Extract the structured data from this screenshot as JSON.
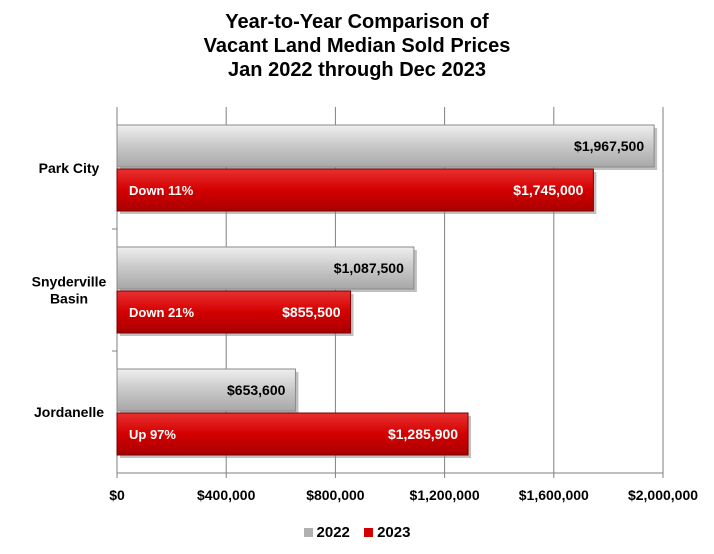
{
  "chart_data": {
    "type": "bar",
    "orientation": "horizontal",
    "title": [
      "Year-to-Year Comparison of",
      "Vacant Land Median Sold Prices",
      "Jan 2022 through Dec 2023"
    ],
    "categories": [
      {
        "lines": [
          "Park City"
        ]
      },
      {
        "lines": [
          "Snyderville",
          "Basin"
        ]
      },
      {
        "lines": [
          "Jordanelle"
        ]
      }
    ],
    "series": [
      {
        "name": "2022",
        "color": "#c8c8c8",
        "values": [
          1967500,
          1087500,
          653600
        ],
        "labels": [
          "$1,967,500",
          "$1,087,500",
          "$653,600"
        ]
      },
      {
        "name": "2023",
        "color": "#d40000",
        "values": [
          1745000,
          855500,
          1285900
        ],
        "labels": [
          "$1,745,000",
          "$855,500",
          "$1,285,900"
        ],
        "change_labels": [
          "Down 11%",
          "Down 21%",
          "Up 97%"
        ]
      }
    ],
    "xlim": [
      0,
      2000000
    ],
    "ticks": [
      0,
      400000,
      800000,
      1200000,
      1600000,
      2000000
    ],
    "tick_labels": [
      "$0",
      "$400,000",
      "$800,000",
      "$1,200,000",
      "$1,600,000",
      "$2,000,000"
    ],
    "grid": true,
    "legend_position": "bottom"
  }
}
